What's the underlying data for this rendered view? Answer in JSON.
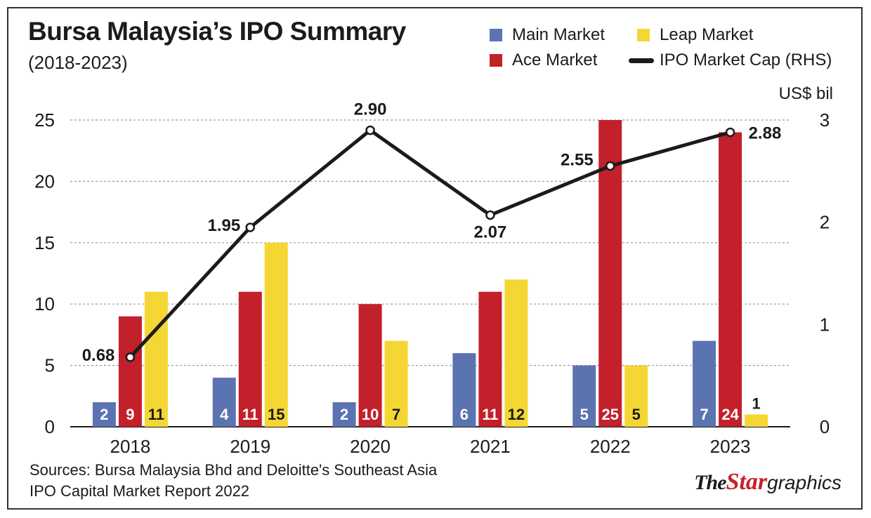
{
  "title": "Bursa Malaysia’s IPO Summary",
  "subtitle": "(2018-2023)",
  "legend": {
    "main": "Main Market",
    "leap": "Leap Market",
    "ace": "Ace Market",
    "cap": "IPO Market Cap (RHS)"
  },
  "right_axis_unit": "US$ bil",
  "source_line1": "Sources: Bursa Malaysia Bhd and Deloitte's Southeast Asia",
  "source_line2": "IPO Capital Market Report 2022",
  "brand": {
    "the": "The",
    "star": "Star",
    "graphics": "graphics"
  },
  "colors": {
    "main": "#5b73b0",
    "ace": "#c2202b",
    "leap": "#f5d733",
    "line": "#1b1b1b",
    "grid": "#9a9a9a"
  },
  "chart_data": {
    "type": "bar",
    "categories": [
      "2018",
      "2019",
      "2020",
      "2021",
      "2022",
      "2023"
    ],
    "series": [
      {
        "name": "Main Market",
        "values": [
          2,
          4,
          2,
          6,
          5,
          7
        ]
      },
      {
        "name": "Ace Market",
        "values": [
          9,
          11,
          10,
          11,
          25,
          24
        ]
      },
      {
        "name": "Leap Market",
        "values": [
          11,
          15,
          7,
          12,
          5,
          1
        ]
      }
    ],
    "line_series": {
      "name": "IPO Market Cap (RHS)",
      "values": [
        0.68,
        1.95,
        2.9,
        2.07,
        2.55,
        2.88
      ],
      "labels": [
        "0.68",
        "1.95",
        "2.90",
        "2.07",
        "2.55",
        "2.88"
      ]
    },
    "ylim": [
      0,
      25
    ],
    "yticks": [
      0,
      5,
      10,
      15,
      20,
      25
    ],
    "y2lim": [
      0,
      3
    ],
    "y2ticks": [
      0,
      1,
      2,
      3
    ],
    "grid": true,
    "legend_position": "top-right"
  }
}
